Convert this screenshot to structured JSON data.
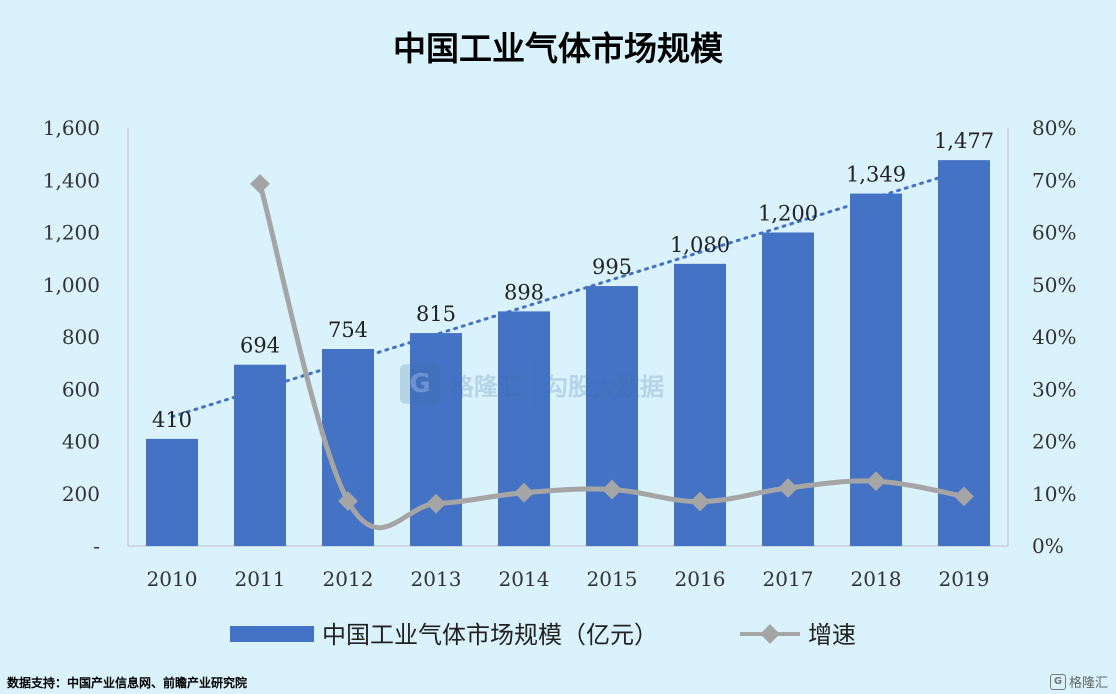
{
  "chart_data": {
    "type": "bar",
    "title": "中国工业气体市场规模",
    "categories": [
      "2010",
      "2011",
      "2012",
      "2013",
      "2014",
      "2015",
      "2016",
      "2017",
      "2018",
      "2019"
    ],
    "series": [
      {
        "name": "中国工业气体市场规模（亿元）",
        "type": "bar",
        "axis": "left",
        "color": "#4472c4",
        "values": [
          410,
          694,
          754,
          815,
          898,
          995,
          1080,
          1200,
          1349,
          1477
        ],
        "labels": [
          "410",
          "694",
          "754",
          "815",
          "898",
          "995",
          "1,080",
          "1,200",
          "1,349",
          "1,477"
        ]
      },
      {
        "name": "增速",
        "type": "line",
        "axis": "right",
        "color": "#a5a5a5",
        "values": [
          null,
          69.3,
          8.6,
          8.1,
          10.2,
          10.8,
          8.5,
          11.1,
          12.4,
          9.5
        ]
      }
    ],
    "trendline": {
      "style": "dotted",
      "color": "#4472c4"
    },
    "left_axis": {
      "ylim": [
        0,
        1600
      ],
      "ticks": [
        "-",
        "200",
        "400",
        "600",
        "800",
        "1,000",
        "1,200",
        "1,400",
        "1,600"
      ]
    },
    "right_axis": {
      "ylim": [
        0,
        80
      ],
      "ticks": [
        "0%",
        "10%",
        "20%",
        "30%",
        "40%",
        "50%",
        "60%",
        "70%",
        "80%"
      ]
    },
    "grid": false,
    "legend_position": "bottom"
  },
  "source": "数据支持：中国产业信息网、前瞻产业研究院",
  "watermark": {
    "name1": "格隆汇",
    "name2": "勾股大数据"
  },
  "brand": "格隆汇",
  "brand_icon": "G"
}
